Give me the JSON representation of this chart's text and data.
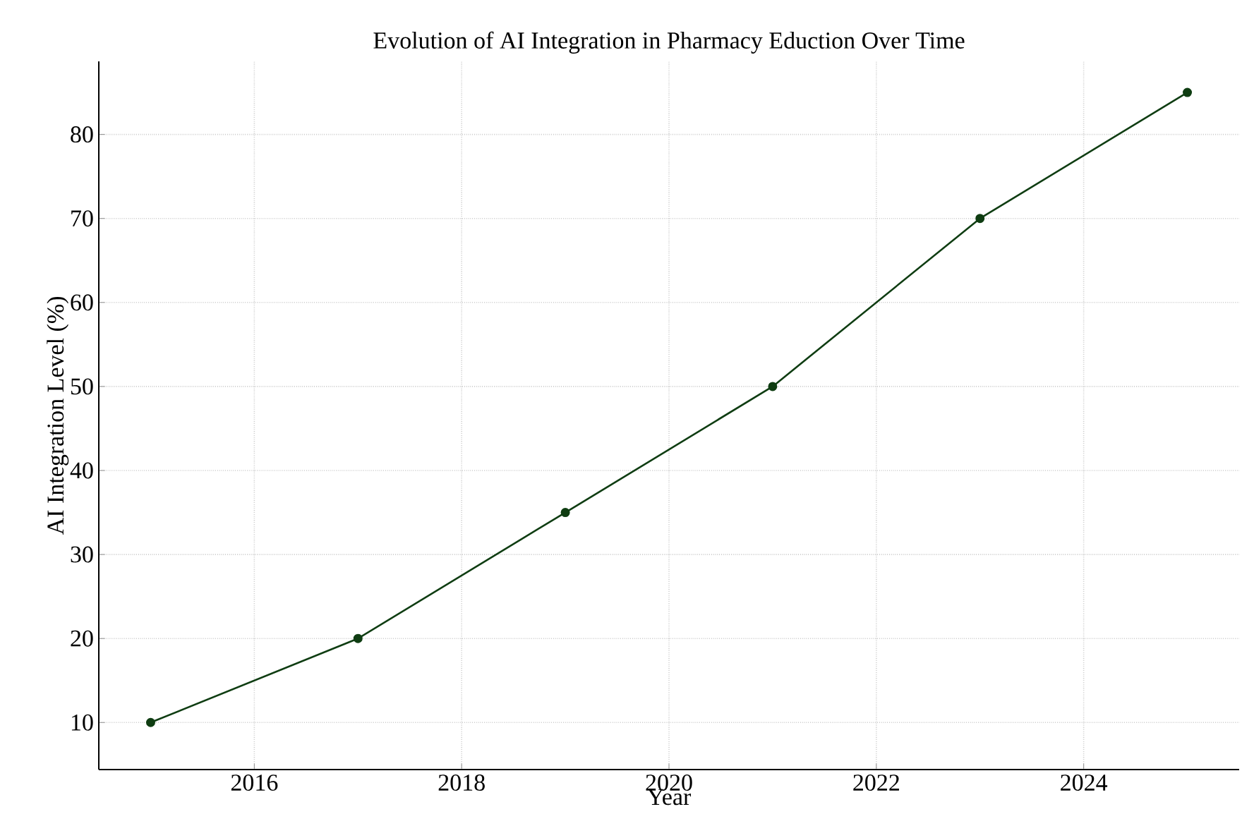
{
  "chart_data": {
    "type": "line",
    "title": "Evolution of AI Integration in Pharmacy Eduction Over Time",
    "xlabel": "Year",
    "ylabel": "AI Integration Level (%)",
    "x": [
      2015,
      2017,
      2019,
      2021,
      2023,
      2025
    ],
    "series": [
      {
        "color": "#0f3d12",
        "values": [
          10,
          20,
          35,
          50,
          70,
          85
        ]
      }
    ],
    "xlim": [
      2014.5,
      2025.5
    ],
    "xticks": [
      2016,
      2018,
      2020,
      2022,
      2024
    ],
    "ylim": [
      4.4,
      88.7
    ],
    "yticks": [
      10,
      20,
      30,
      40,
      50,
      60,
      70,
      80
    ],
    "grid": true,
    "marker": "circle",
    "line_style": "solid"
  }
}
